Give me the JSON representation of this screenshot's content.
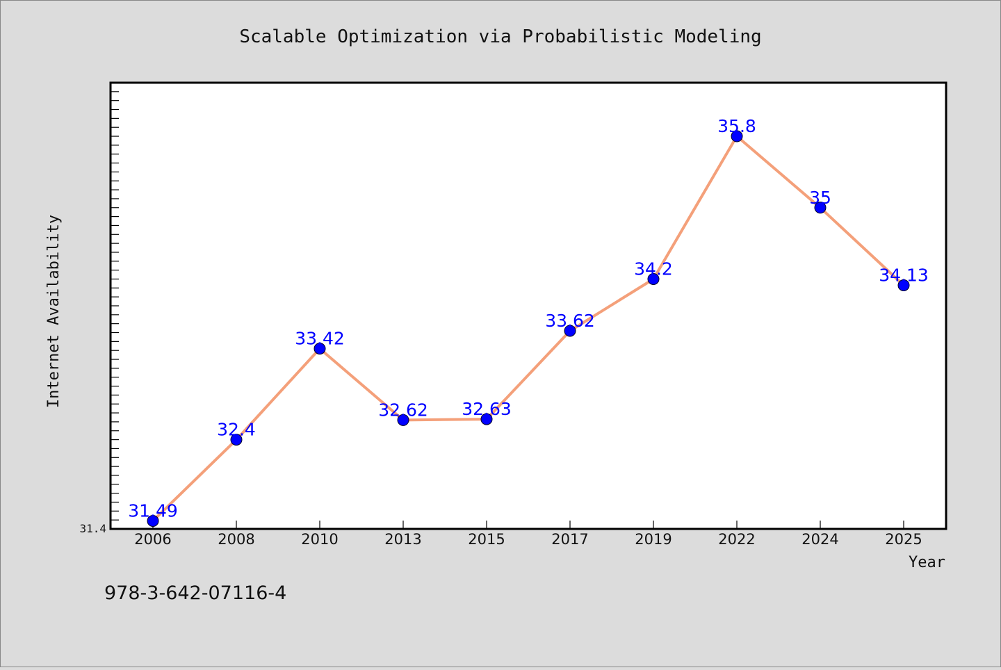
{
  "chart_data": {
    "type": "line",
    "title": "Scalable Optimization via Probabilistic Modeling",
    "xlabel": "Year",
    "ylabel": "Internet Availability",
    "categories": [
      "2006",
      "2008",
      "2010",
      "2013",
      "2015",
      "2017",
      "2019",
      "2022",
      "2024",
      "2025"
    ],
    "values": [
      31.49,
      32.4,
      33.42,
      32.62,
      32.63,
      33.62,
      34.2,
      35.8,
      35,
      34.13
    ],
    "data_labels": [
      "31.49",
      "32.4",
      "33.42",
      "32.62",
      "32.63",
      "33.62",
      "34.2",
      "35.8",
      "35",
      "34.13"
    ],
    "y_tick_labels": [
      "31.4"
    ],
    "ylim": [
      31.4,
      36.4
    ],
    "grid": false,
    "line_color": "#f4a07a",
    "marker_color": "#0000ff",
    "label_color": "#0000ff"
  },
  "footer": {
    "isbn": "978-3-642-07116-4"
  }
}
